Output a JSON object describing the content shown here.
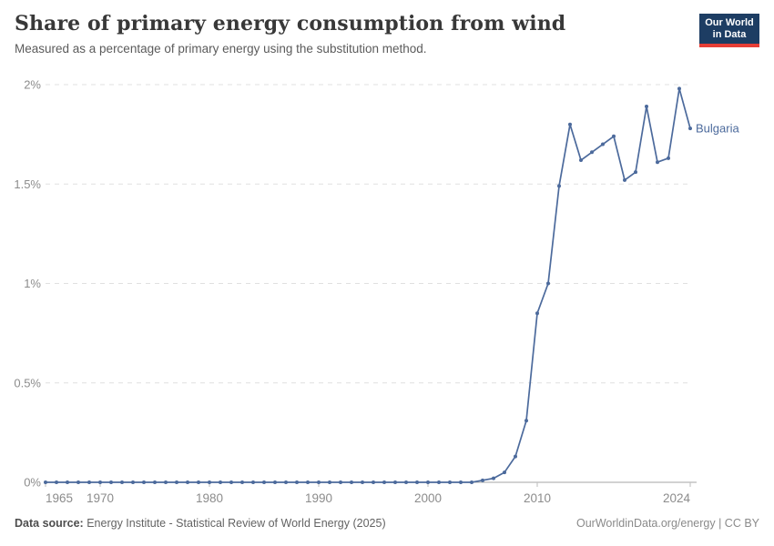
{
  "header": {
    "title": "Share of primary energy consumption from wind",
    "subtitle": "Measured as a percentage of primary energy using the substitution method."
  },
  "logo": {
    "line1": "Our World",
    "line2": "in Data",
    "bg_color": "#1d3d63",
    "accent_color": "#e63e36"
  },
  "chart_data": {
    "type": "line",
    "title": "Share of primary energy consumption from wind",
    "xlabel": "",
    "ylabel": "",
    "unit": "%",
    "xlim": [
      1965,
      2024
    ],
    "ylim": [
      0,
      2
    ],
    "grid": "horizontal-dashed",
    "legend_position": "end-of-line-label",
    "yticks": [
      {
        "v": 0,
        "label": "0%"
      },
      {
        "v": 0.5,
        "label": "0.5%"
      },
      {
        "v": 1,
        "label": "1%"
      },
      {
        "v": 1.5,
        "label": "1.5%"
      },
      {
        "v": 2,
        "label": "2%"
      }
    ],
    "xticks": [
      {
        "v": 1965,
        "label": "1965"
      },
      {
        "v": 1970,
        "label": "1970"
      },
      {
        "v": 1980,
        "label": "1980"
      },
      {
        "v": 1990,
        "label": "1990"
      },
      {
        "v": 2000,
        "label": "2000"
      },
      {
        "v": 2010,
        "label": "2010"
      },
      {
        "v": 2024,
        "label": "2024"
      }
    ],
    "series": [
      {
        "name": "Bulgaria",
        "color": "#4C6A9C",
        "years": [
          1965,
          1966,
          1967,
          1968,
          1969,
          1970,
          1971,
          1972,
          1973,
          1974,
          1975,
          1976,
          1977,
          1978,
          1979,
          1980,
          1981,
          1982,
          1983,
          1984,
          1985,
          1986,
          1987,
          1988,
          1989,
          1990,
          1991,
          1992,
          1993,
          1994,
          1995,
          1996,
          1997,
          1998,
          1999,
          2000,
          2001,
          2002,
          2003,
          2004,
          2005,
          2006,
          2007,
          2008,
          2009,
          2010,
          2011,
          2012,
          2013,
          2014,
          2015,
          2016,
          2017,
          2018,
          2019,
          2020,
          2021,
          2022,
          2023,
          2024
        ],
        "values": [
          0,
          0,
          0,
          0,
          0,
          0,
          0,
          0,
          0,
          0,
          0,
          0,
          0,
          0,
          0,
          0,
          0,
          0,
          0,
          0,
          0,
          0,
          0,
          0,
          0,
          0,
          0,
          0,
          0,
          0,
          0,
          0,
          0,
          0,
          0,
          0,
          0,
          0,
          0,
          0,
          0.01,
          0.02,
          0.05,
          0.13,
          0.31,
          0.85,
          1.0,
          1.49,
          1.8,
          1.62,
          1.66,
          1.7,
          1.74,
          1.52,
          1.56,
          1.89,
          1.61,
          1.63,
          1.98,
          1.78
        ]
      }
    ],
    "style": {
      "gridline_color": "#e0e0e0",
      "zero_line_color": "#a6a6a6",
      "tick_mark_color": "#bbbbbb",
      "tick_label_color": "#8c8c8c"
    }
  },
  "footer": {
    "source_label": "Data source:",
    "source_text": "Energy Institute - Statistical Review of World Energy (2025)",
    "link": "OurWorldinData.org/energy | CC BY"
  }
}
